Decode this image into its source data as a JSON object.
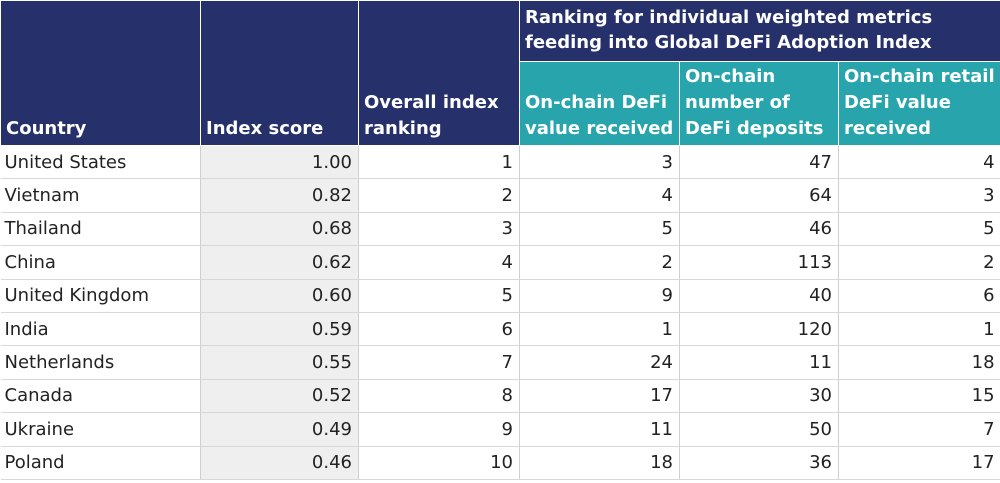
{
  "header": {
    "country": "Country",
    "index_score": "Index score",
    "overall_ranking": "Overall index ranking",
    "group_title": "Ranking for individual weighted metrics feeding into Global DeFi Adoption Index",
    "metric_value_received": "On-chain DeFi value received",
    "metric_deposits": "On-chain number of DeFi deposits",
    "metric_retail": "On-chain retail DeFi value received"
  },
  "colors": {
    "navy": "#26306b",
    "teal": "#28a5ac",
    "shaded_cell": "#efefef"
  },
  "rows": [
    {
      "country": "United States",
      "score": "1.00",
      "rank": "1",
      "value_received": "3",
      "deposits": "47",
      "retail": "4"
    },
    {
      "country": "Vietnam",
      "score": "0.82",
      "rank": "2",
      "value_received": "4",
      "deposits": "64",
      "retail": "3"
    },
    {
      "country": "Thailand",
      "score": "0.68",
      "rank": "3",
      "value_received": "5",
      "deposits": "46",
      "retail": "5"
    },
    {
      "country": "China",
      "score": "0.62",
      "rank": "4",
      "value_received": "2",
      "deposits": "113",
      "retail": "2"
    },
    {
      "country": "United Kingdom",
      "score": "0.60",
      "rank": "5",
      "value_received": "9",
      "deposits": "40",
      "retail": "6"
    },
    {
      "country": "India",
      "score": "0.59",
      "rank": "6",
      "value_received": "1",
      "deposits": "120",
      "retail": "1"
    },
    {
      "country": "Netherlands",
      "score": "0.55",
      "rank": "7",
      "value_received": "24",
      "deposits": "11",
      "retail": "18"
    },
    {
      "country": "Canada",
      "score": "0.52",
      "rank": "8",
      "value_received": "17",
      "deposits": "30",
      "retail": "15"
    },
    {
      "country": "Ukraine",
      "score": "0.49",
      "rank": "9",
      "value_received": "11",
      "deposits": "50",
      "retail": "7"
    },
    {
      "country": "Poland",
      "score": "0.46",
      "rank": "10",
      "value_received": "18",
      "deposits": "36",
      "retail": "17"
    }
  ]
}
